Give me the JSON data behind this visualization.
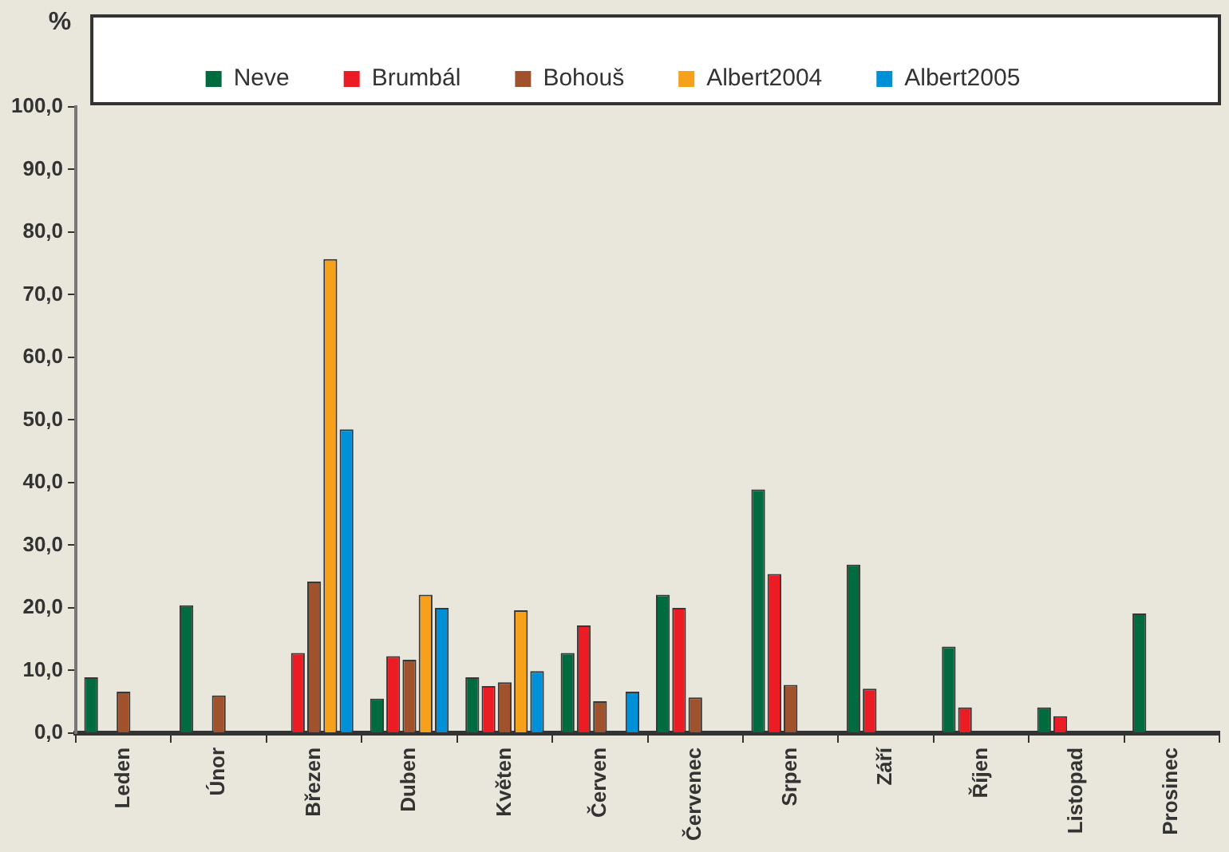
{
  "chart_data": {
    "type": "bar",
    "ylabel": "%",
    "categories": [
      "Leden",
      "Únor",
      "Březen",
      "Duben",
      "Květen",
      "Červen",
      "Červenec",
      "Srpen",
      "Září",
      "Říjen",
      "Listopad",
      "Prosinec"
    ],
    "series": [
      {
        "name": "Neve",
        "color": "#006b3f",
        "values": [
          8.9,
          20.4,
          null,
          5.5,
          8.9,
          12.8,
          22.1,
          38.9,
          26.9,
          13.8,
          4.1,
          19.1
        ]
      },
      {
        "name": "Brumbál",
        "color": "#ec1c24",
        "values": [
          null,
          null,
          12.8,
          12.3,
          7.5,
          17.2,
          20.0,
          25.4,
          7.1,
          4.1,
          2.7,
          null
        ]
      },
      {
        "name": "Bohouš",
        "color": "#a0522d",
        "values": [
          6.6,
          6.0,
          24.2,
          11.7,
          8.1,
          5.1,
          5.7,
          7.7,
          null,
          null,
          null,
          null
        ]
      },
      {
        "name": "Albert2004",
        "color": "#f7a11a",
        "values": [
          null,
          null,
          75.7,
          22.1,
          19.6,
          null,
          null,
          null,
          null,
          null,
          null,
          null
        ]
      },
      {
        "name": "Albert2005",
        "color": "#0090d8",
        "values": [
          null,
          null,
          48.5,
          20.0,
          9.9,
          6.6,
          null,
          null,
          null,
          null,
          null,
          null
        ]
      }
    ],
    "ylim": [
      0,
      100
    ],
    "yticks": [
      {
        "value": 0,
        "label": "0,0"
      },
      {
        "value": 10,
        "label": "10,0"
      },
      {
        "value": 20,
        "label": "20,0"
      },
      {
        "value": 30,
        "label": "30,0"
      },
      {
        "value": 40,
        "label": "40,0"
      },
      {
        "value": 50,
        "label": "50,0"
      },
      {
        "value": 60,
        "label": "60,0"
      },
      {
        "value": 70,
        "label": "70,0"
      },
      {
        "value": 80,
        "label": "80,0"
      },
      {
        "value": 90,
        "label": "90,0"
      },
      {
        "value": 100,
        "label": "100,0"
      }
    ],
    "grid": false,
    "legend": "top"
  }
}
